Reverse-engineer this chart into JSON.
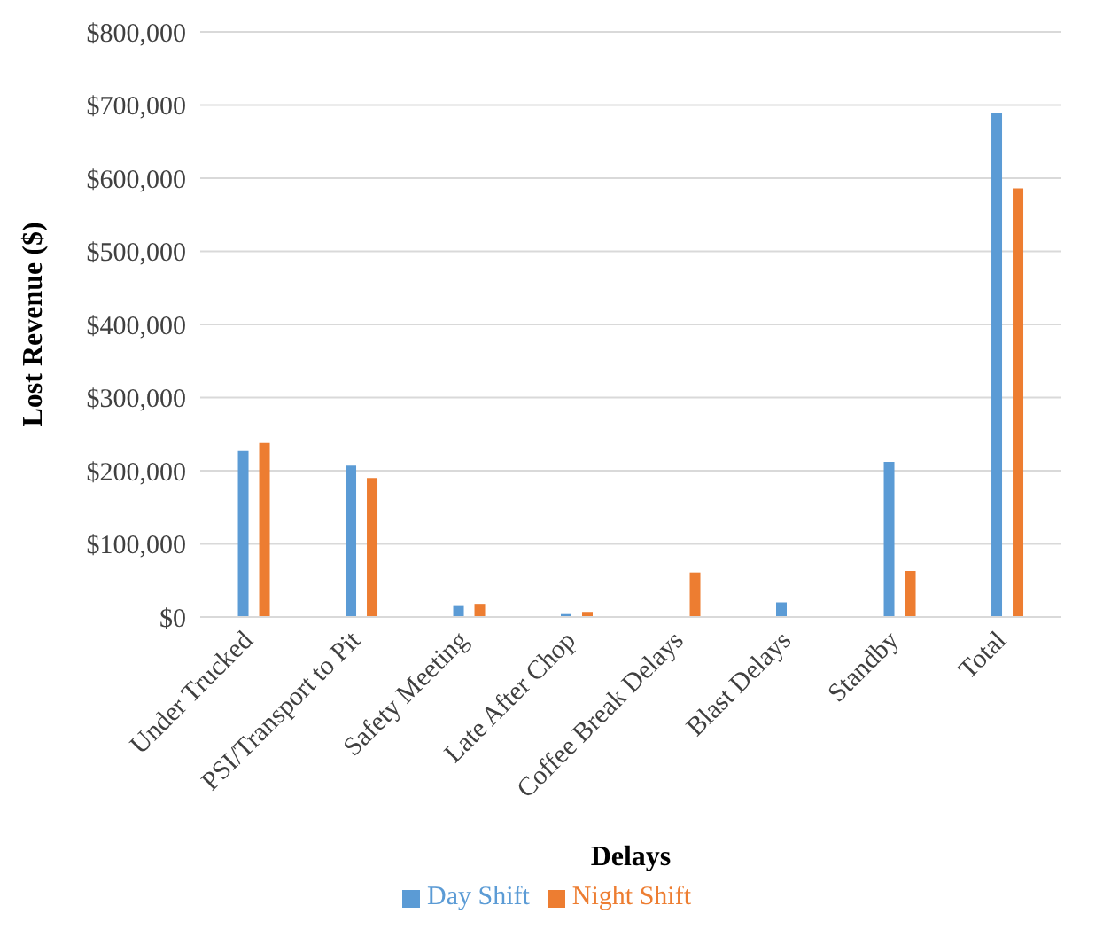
{
  "chart_data": {
    "type": "bar",
    "xlabel": "Delays",
    "ylabel": "Lost Revenue ($)",
    "categories": [
      "Under Trucked",
      "PSI/Transport to Pit",
      "Safety Meeting",
      "Late After Chop",
      "Coffee Break Delays",
      "Blast Delays",
      "Standby",
      "Total"
    ],
    "series": [
      {
        "name": "Day Shift",
        "color": "#5b9bd5",
        "values": [
          227000,
          207000,
          15000,
          4000,
          0,
          20000,
          212000,
          689000
        ]
      },
      {
        "name": "Night Shift",
        "color": "#ed7d31",
        "values": [
          238000,
          190000,
          18000,
          7000,
          61000,
          0,
          63000,
          586000
        ]
      }
    ],
    "ylim": [
      0,
      800000
    ],
    "yticks": [
      {
        "value": 0,
        "label": "$0"
      },
      {
        "value": 100000,
        "label": "$100,000"
      },
      {
        "value": 200000,
        "label": "$200,000"
      },
      {
        "value": 300000,
        "label": "$300,000"
      },
      {
        "value": 400000,
        "label": "$400,000"
      },
      {
        "value": 500000,
        "label": "$500,000"
      },
      {
        "value": 600000,
        "label": "$600,000"
      },
      {
        "value": 700000,
        "label": "$700,000"
      },
      {
        "value": 800000,
        "label": "$800,000"
      }
    ],
    "grid": "y",
    "legend": "bottom"
  }
}
